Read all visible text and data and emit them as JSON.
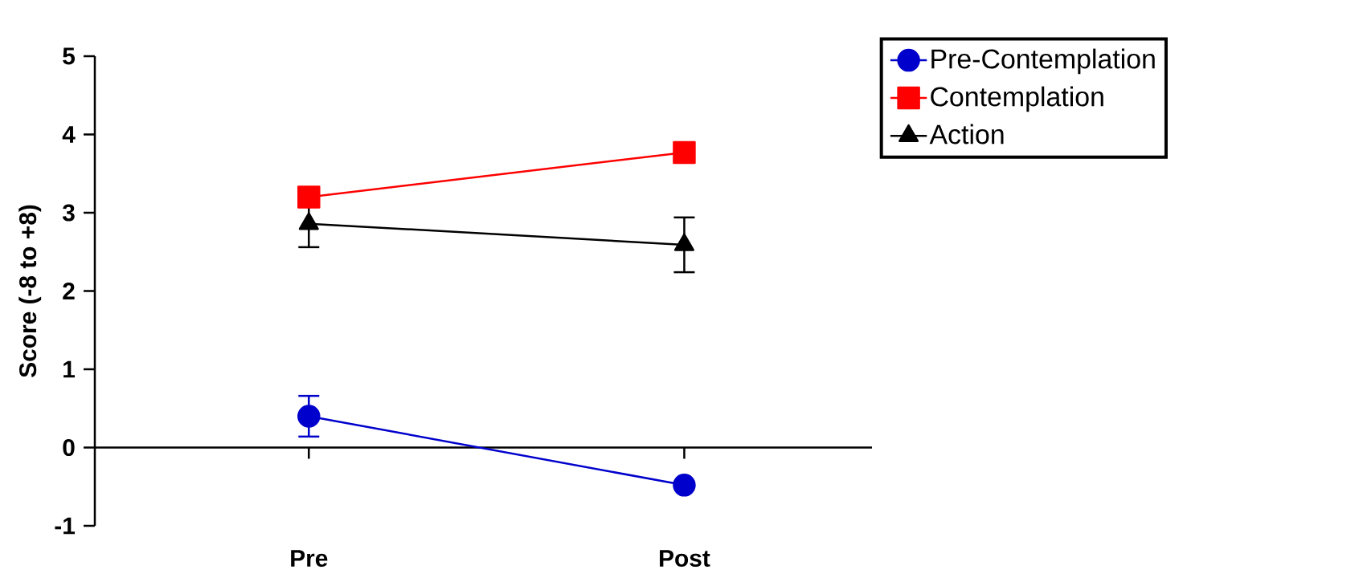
{
  "chart_data": {
    "type": "line",
    "ylabel": "Score (-8 to +8)",
    "categories": [
      "Pre",
      "Post"
    ],
    "ylim": [
      -1,
      5
    ],
    "yticks": [
      -1,
      0,
      1,
      2,
      3,
      4,
      5
    ],
    "legend": "top right",
    "series": [
      {
        "name": "Pre-Contemplation",
        "color": "#0000cc",
        "marker": "circle",
        "values": [
          0.4,
          -0.48
        ],
        "errors": [
          0.26,
          null
        ]
      },
      {
        "name": "Contemplation",
        "color": "#ff0000",
        "marker": "square",
        "values": [
          3.2,
          3.77
        ],
        "errors": [
          null,
          null
        ]
      },
      {
        "name": "Action",
        "color": "#000000",
        "marker": "triangle",
        "values": [
          2.86,
          2.59
        ],
        "errors": [
          0.3,
          0.35
        ]
      }
    ]
  }
}
